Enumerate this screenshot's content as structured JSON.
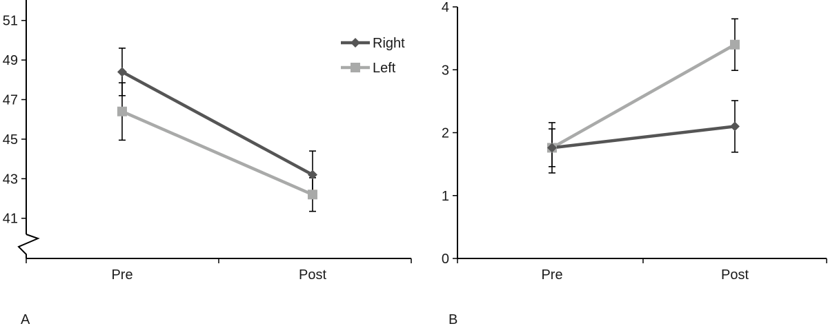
{
  "chart_data": [
    {
      "type": "line",
      "panel_label": "A",
      "categories": [
        "Pre",
        "Post"
      ],
      "ylim": [
        39,
        52
      ],
      "y_ticks": [
        41,
        43,
        45,
        47,
        49,
        51
      ],
      "axis_break": true,
      "legend": {
        "placement": "top-right",
        "entries": [
          "Right",
          "Left"
        ]
      },
      "series": [
        {
          "name": "Right",
          "color": "#555555",
          "marker": "diamond",
          "values": [
            48.4,
            43.2
          ],
          "error": [
            1.2,
            1.2
          ]
        },
        {
          "name": "Left",
          "color": "#a9aaa9",
          "marker": "square",
          "values": [
            46.4,
            42.2
          ],
          "error": [
            1.45,
            0.85
          ]
        }
      ]
    },
    {
      "type": "line",
      "panel_label": "B",
      "categories": [
        "Pre",
        "Post"
      ],
      "ylim": [
        0,
        4
      ],
      "y_ticks": [
        0,
        1,
        2,
        3,
        4
      ],
      "series": [
        {
          "name": "Right",
          "color": "#555555",
          "marker": "diamond",
          "values": [
            1.76,
            2.1
          ],
          "error": [
            0.3,
            0.41
          ]
        },
        {
          "name": "Left",
          "color": "#a9aaa9",
          "marker": "square",
          "values": [
            1.76,
            3.4
          ],
          "error": [
            0.4,
            0.41
          ]
        }
      ]
    }
  ]
}
